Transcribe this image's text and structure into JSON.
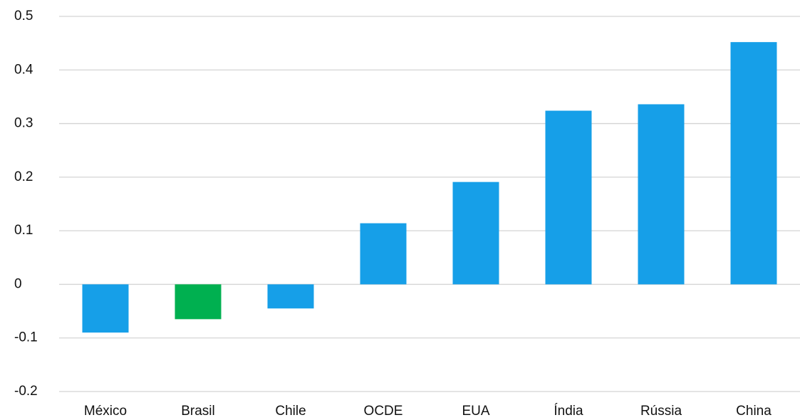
{
  "chart_data": {
    "type": "bar",
    "categories": [
      "México",
      "Brasil",
      "Chile",
      "OCDE",
      "EUA",
      "Índia",
      "Rússia",
      "China"
    ],
    "values": [
      -0.09,
      -0.065,
      -0.045,
      0.114,
      0.191,
      0.324,
      0.336,
      0.452
    ],
    "colors": [
      "#169fe8",
      "#00b050",
      "#169fe8",
      "#169fe8",
      "#169fe8",
      "#169fe8",
      "#169fe8",
      "#169fe8"
    ],
    "ylim": [
      -0.2,
      0.5
    ],
    "yticks": [
      -0.2,
      -0.1,
      0,
      0.1,
      0.2,
      0.3,
      0.4,
      0.5
    ],
    "grid": true
  }
}
